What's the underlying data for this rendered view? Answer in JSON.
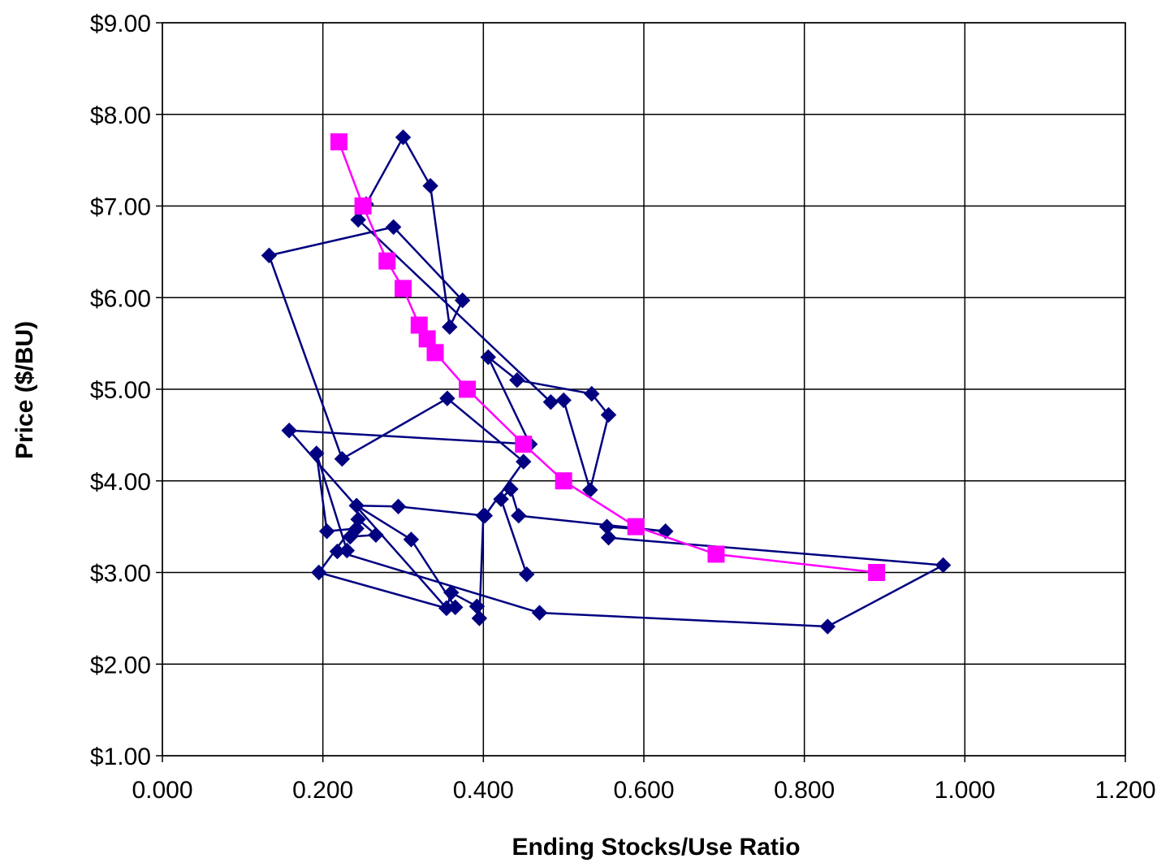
{
  "chart_data": {
    "type": "scatter",
    "title": "",
    "xlabel": "Ending Stocks/Use Ratio",
    "ylabel": "Price ($/BU)",
    "xlim": [
      0,
      1.2
    ],
    "ylim": [
      1,
      9
    ],
    "x_ticks": [
      0,
      0.2,
      0.4,
      0.6,
      0.8,
      1.0,
      1.2
    ],
    "x_tick_labels": [
      "0.000",
      "0.200",
      "0.400",
      "0.600",
      "0.800",
      "1.000",
      "1.200"
    ],
    "y_ticks": [
      1,
      2,
      3,
      4,
      5,
      6,
      7,
      8,
      9
    ],
    "y_tick_labels": [
      "$1.00",
      "$2.00",
      "$3.00",
      "$4.00",
      "$5.00",
      "$6.00",
      "$7.00",
      "$8.00",
      "$9.00"
    ],
    "grid": true,
    "legend": "none",
    "series": [
      {
        "color": "#000080",
        "marker": "diamond",
        "points": [
          [
            0.4,
            3.62
          ],
          [
            0.395,
            2.5
          ],
          [
            0.392,
            2.63
          ],
          [
            0.36,
            2.78
          ],
          [
            0.354,
            2.61
          ],
          [
            0.365,
            2.62
          ],
          [
            0.31,
            3.36
          ],
          [
            0.242,
            3.73
          ],
          [
            0.294,
            3.72
          ],
          [
            0.402,
            3.62
          ],
          [
            0.45,
            4.21
          ],
          [
            0.355,
            4.9
          ],
          [
            0.224,
            4.24
          ],
          [
            0.133,
            6.46
          ],
          [
            0.288,
            6.77
          ],
          [
            0.374,
            5.97
          ],
          [
            0.358,
            5.68
          ],
          [
            0.334,
            7.22
          ],
          [
            0.3,
            7.75
          ],
          [
            0.254,
            7.02
          ],
          [
            0.244,
            6.85
          ],
          [
            0.484,
            4.86
          ],
          [
            0.5,
            4.88
          ],
          [
            0.533,
            3.9
          ],
          [
            0.556,
            4.72
          ],
          [
            0.535,
            4.95
          ],
          [
            0.442,
            5.1
          ],
          [
            0.406,
            5.35
          ],
          [
            0.458,
            4.4
          ],
          [
            0.158,
            4.55
          ],
          [
            0.354,
            2.61
          ],
          [
            0.195,
            3.0
          ],
          [
            0.244,
            3.58
          ],
          [
            0.266,
            3.41
          ],
          [
            0.234,
            3.39
          ],
          [
            0.242,
            3.48
          ],
          [
            0.205,
            3.45
          ],
          [
            0.192,
            4.3
          ],
          [
            0.23,
            3.24
          ],
          [
            0.218,
            3.23
          ],
          [
            0.47,
            2.56
          ],
          [
            0.829,
            2.41
          ],
          [
            0.973,
            3.08
          ],
          [
            0.556,
            3.38
          ],
          [
            0.554,
            3.5
          ],
          [
            0.627,
            3.45
          ],
          [
            0.444,
            3.62
          ],
          [
            0.434,
            3.91
          ],
          [
            0.422,
            3.8
          ],
          [
            0.454,
            2.98
          ]
        ]
      },
      {
        "color": "#ff00ff",
        "marker": "square",
        "points": [
          [
            0.22,
            7.7
          ],
          [
            0.25,
            7.0
          ],
          [
            0.28,
            6.4
          ],
          [
            0.3,
            6.1
          ],
          [
            0.32,
            5.7
          ],
          [
            0.33,
            5.55
          ],
          [
            0.34,
            5.4
          ],
          [
            0.38,
            5.0
          ],
          [
            0.45,
            4.4
          ],
          [
            0.5,
            4.0
          ],
          [
            0.59,
            3.5
          ],
          [
            0.69,
            3.2
          ],
          [
            0.89,
            3.0
          ]
        ]
      }
    ]
  }
}
